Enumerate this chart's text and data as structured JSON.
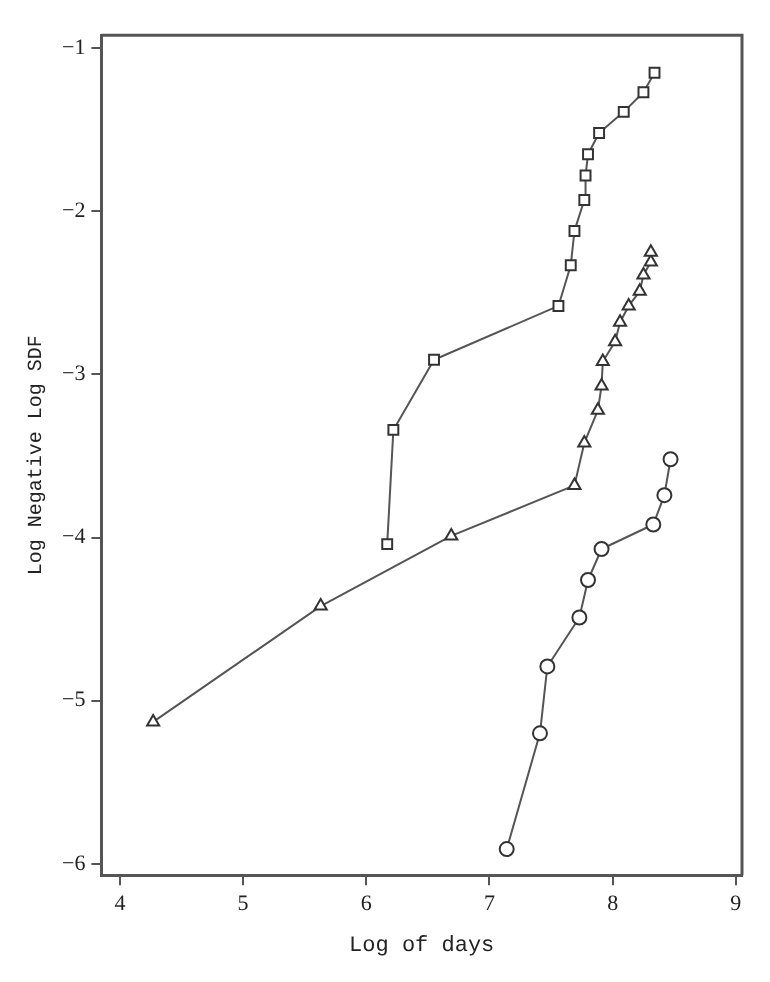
{
  "chart_data": {
    "type": "line",
    "xlabel": "Log of days",
    "ylabel": "Log Negative Log SDF",
    "xlim": [
      3.85,
      9.05
    ],
    "ylim": [
      -6.07,
      -0.92
    ],
    "xticks": [
      4,
      5,
      6,
      7,
      8,
      9
    ],
    "yticks": [
      -6,
      -5,
      -4,
      -3,
      -2,
      -1
    ],
    "grid": false,
    "legend": false,
    "line_style": "solid",
    "series": [
      {
        "color": "#555555",
        "marker": "square",
        "x": [
          6.17,
          6.22,
          6.55,
          7.56,
          7.66,
          7.69,
          7.77,
          7.78,
          7.8,
          7.89,
          8.09,
          8.25,
          8.34
        ],
        "values": [
          -4.04,
          -3.34,
          -2.91,
          -2.58,
          -2.33,
          -2.12,
          -1.93,
          -1.78,
          -1.65,
          -1.52,
          -1.39,
          -1.27,
          -1.15
        ]
      },
      {
        "color": "#555555",
        "marker": "triangle",
        "x": [
          4.27,
          5.63,
          6.69,
          7.69,
          7.77,
          7.88,
          7.91,
          7.92,
          8.02,
          8.06,
          8.13,
          8.22,
          8.25,
          8.31,
          8.31
        ],
        "values": [
          -5.13,
          -4.42,
          -3.99,
          -3.68,
          -3.42,
          -3.22,
          -3.07,
          -2.92,
          -2.8,
          -2.68,
          -2.58,
          -2.49,
          -2.39,
          -2.31,
          -2.25
        ]
      },
      {
        "color": "#555555",
        "marker": "circle",
        "x": [
          7.14,
          7.41,
          7.47,
          7.73,
          7.8,
          7.91,
          8.33,
          8.42,
          8.47
        ],
        "values": [
          -5.91,
          -5.2,
          -4.79,
          -4.49,
          -4.26,
          -4.07,
          -3.92,
          -3.74,
          -3.52
        ]
      }
    ]
  }
}
